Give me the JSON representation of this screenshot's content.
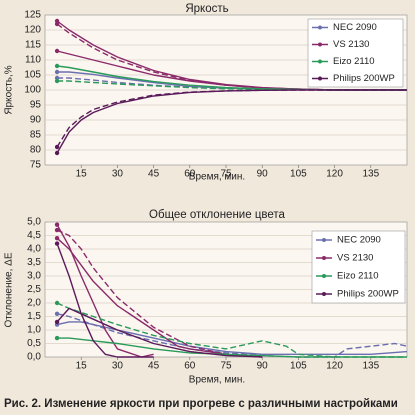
{
  "caption": "Рис. 2. Изменение яркости при прогреве с различными настройками",
  "chart_data": [
    {
      "type": "line",
      "title": "Яркость",
      "xlabel": "Время, мин.",
      "ylabel": "Яркость,%",
      "xlim": [
        0,
        150
      ],
      "ylim": [
        75,
        125
      ],
      "xticks": [
        "15",
        "30",
        "45",
        "60",
        "75",
        "90",
        "105",
        "120",
        "135"
      ],
      "yticks": [
        "75",
        "80",
        "85",
        "90",
        "95",
        "100",
        "105",
        "110",
        "115",
        "120",
        "125"
      ],
      "grid": true,
      "legend_position": "top-right",
      "legend": [
        "NEC 2090",
        "VS 2130",
        "Eizo 2110",
        "Philips 200WP"
      ],
      "series": [
        {
          "name": "NEC 2090",
          "color": "#6a6fb0",
          "dash": "solid",
          "x": [
            5,
            10,
            20,
            30,
            45,
            60,
            75,
            90,
            105,
            120,
            135,
            150
          ],
          "y": [
            106,
            106,
            105.2,
            104,
            102.5,
            101.2,
            100.6,
            100.3,
            100.1,
            100,
            100,
            100
          ]
        },
        {
          "name": "NEC 2090",
          "color": "#6a6fb0",
          "dash": "dashed",
          "x": [
            5,
            10,
            20,
            30,
            45,
            60,
            75,
            90,
            105,
            120,
            135,
            150
          ],
          "y": [
            104,
            104,
            103.3,
            102.5,
            101.6,
            100.9,
            100.5,
            100.2,
            100.1,
            100,
            100,
            100
          ]
        },
        {
          "name": "VS 2130",
          "color": "#8a2a6a",
          "dash": "solid",
          "x": [
            5,
            10,
            20,
            30,
            45,
            60,
            75,
            90,
            105,
            120,
            135,
            150
          ],
          "y": [
            123,
            120,
            115,
            111,
            106.5,
            103.5,
            101.8,
            100.8,
            100.3,
            100,
            100,
            100
          ]
        },
        {
          "name": "VS 2130",
          "color": "#8a2a6a",
          "dash": "dashed",
          "x": [
            5,
            10,
            20,
            30,
            45,
            60,
            75,
            90,
            105,
            120,
            135,
            150
          ],
          "y": [
            122,
            119,
            114,
            110,
            106,
            103.2,
            101.6,
            100.7,
            100.3,
            100,
            100,
            100
          ]
        },
        {
          "name": "VS 2130",
          "color": "#8a2a6a",
          "dash": "solid",
          "x": [
            5,
            10,
            20,
            30,
            45,
            60,
            75,
            90,
            105,
            120,
            135,
            150
          ],
          "y": [
            113,
            112,
            110,
            108,
            105,
            103,
            101.6,
            100.7,
            100.3,
            100,
            100,
            100
          ]
        },
        {
          "name": "Eizo 2110",
          "color": "#2a9a5a",
          "dash": "solid",
          "x": [
            5,
            10,
            20,
            30,
            45,
            60,
            75,
            90,
            105,
            120,
            135,
            150
          ],
          "y": [
            108,
            107.5,
            106,
            104.5,
            102.8,
            101.6,
            100.8,
            100.4,
            100.2,
            100,
            100,
            100
          ]
        },
        {
          "name": "Eizo 2110",
          "color": "#2a9a5a",
          "dash": "dashed",
          "x": [
            5,
            10,
            20,
            30,
            45,
            60,
            75,
            90,
            105,
            120,
            135,
            150
          ],
          "y": [
            103,
            103,
            102.5,
            102,
            101.4,
            100.8,
            100.4,
            100.2,
            100.1,
            100,
            100,
            100
          ]
        },
        {
          "name": "Philips 200WP",
          "color": "#5a1a5a",
          "dash": "solid",
          "x": [
            5,
            10,
            15,
            20,
            30,
            45,
            60,
            75,
            90,
            105,
            120,
            135,
            150
          ],
          "y": [
            79,
            86,
            90,
            92.5,
            95.5,
            98,
            99.2,
            99.7,
            99.9,
            100,
            100,
            100,
            100
          ]
        },
        {
          "name": "Philips 200WP",
          "color": "#5a1a5a",
          "dash": "dashed",
          "x": [
            5,
            10,
            15,
            20,
            30,
            45,
            60,
            75,
            90,
            105,
            120,
            135,
            150
          ],
          "y": [
            81,
            87.5,
            91,
            93.5,
            96,
            98.3,
            99.3,
            99.7,
            99.9,
            100,
            100,
            100,
            100
          ]
        }
      ]
    },
    {
      "type": "line",
      "title": "Общее отклонение цвета",
      "xlabel": "Время, мин.",
      "ylabel": "Отклонение, ΔE",
      "xlim": [
        0,
        150
      ],
      "ylim": [
        0,
        5
      ],
      "xticks": [
        "15",
        "30",
        "45",
        "60",
        "75",
        "90",
        "105",
        "120",
        "135"
      ],
      "yticks": [
        "0,0",
        "0,5",
        "1,0",
        "1,5",
        "2,0",
        "2,5",
        "3,0",
        "3,5",
        "4,0",
        "4,5",
        "5,0"
      ],
      "grid": true,
      "legend_position": "top-right",
      "legend": [
        "NEC 2090",
        "VS 2130",
        "Eizo 2110",
        "Philips 200WP"
      ],
      "series": [
        {
          "name": "NEC 2090",
          "color": "#6a6fb0",
          "dash": "solid",
          "x": [
            5,
            10,
            15,
            20,
            30,
            45,
            60,
            75,
            90,
            105,
            120,
            135,
            150
          ],
          "y": [
            1.2,
            1.3,
            1.3,
            1.2,
            1.0,
            0.7,
            0.4,
            0.2,
            0.1,
            0.1,
            0.1,
            0.1,
            0.2
          ]
        },
        {
          "name": "NEC 2090",
          "color": "#6a6fb0",
          "dash": "dashed",
          "x": [
            5,
            10,
            20,
            30,
            45,
            60,
            75,
            90,
            105,
            120,
            125,
            135,
            145,
            150
          ],
          "y": [
            1.6,
            1.5,
            1.2,
            0.9,
            0.6,
            0.3,
            0.15,
            0.05,
            0.0,
            0.0,
            0.3,
            0.4,
            0.5,
            0.4
          ]
        },
        {
          "name": "VS 2130",
          "color": "#8a2a6a",
          "dash": "solid",
          "x": [
            5,
            10,
            15,
            20,
            25,
            30,
            40,
            45
          ],
          "y": [
            4.9,
            4.1,
            3.0,
            2.0,
            1.0,
            0.3,
            0.0,
            0.1
          ]
        },
        {
          "name": "VS 2130",
          "color": "#8a2a6a",
          "dash": "dashed",
          "x": [
            5,
            10,
            15,
            20,
            30,
            45,
            60,
            75,
            90
          ],
          "y": [
            4.7,
            4.5,
            4.0,
            3.3,
            2.2,
            1.1,
            0.4,
            0.1,
            0.0
          ]
        },
        {
          "name": "VS 2130",
          "color": "#8a2a6a",
          "dash": "solid",
          "x": [
            5,
            10,
            15,
            20,
            30,
            45,
            55,
            60,
            75,
            90
          ],
          "y": [
            4.4,
            4.0,
            3.4,
            2.8,
            1.9,
            1.0,
            0.4,
            0.3,
            0.1,
            0.0
          ]
        },
        {
          "name": "Eizo 2110",
          "color": "#2a9a5a",
          "dash": "solid",
          "x": [
            5,
            10,
            20,
            30,
            45,
            60,
            75,
            90,
            105,
            120,
            150
          ],
          "y": [
            0.7,
            0.7,
            0.6,
            0.5,
            0.3,
            0.15,
            0.1,
            0.05,
            0.0,
            0.0,
            0.0
          ]
        },
        {
          "name": "Eizo 2110",
          "color": "#2a9a5a",
          "dash": "dashed",
          "x": [
            5,
            10,
            20,
            30,
            45,
            60,
            75,
            90,
            100,
            105,
            120,
            150
          ],
          "y": [
            2.0,
            1.8,
            1.5,
            1.2,
            0.8,
            0.5,
            0.3,
            0.6,
            0.4,
            0.1,
            0.0,
            0.0
          ]
        },
        {
          "name": "Philips 200WP",
          "color": "#5a1a5a",
          "dash": "solid",
          "x": [
            5,
            10,
            15,
            20,
            25,
            30,
            40,
            45
          ],
          "y": [
            4.2,
            3.0,
            1.6,
            0.6,
            0.1,
            0.0,
            0.0,
            0.0
          ]
        },
        {
          "name": "Philips 200WP",
          "color": "#5a1a5a",
          "dash": "solid",
          "x": [
            5,
            10,
            15,
            20,
            30,
            45,
            60,
            75,
            90
          ],
          "y": [
            1.3,
            1.8,
            1.6,
            1.4,
            1.0,
            0.5,
            0.2,
            0.05,
            0.0
          ]
        }
      ]
    }
  ]
}
